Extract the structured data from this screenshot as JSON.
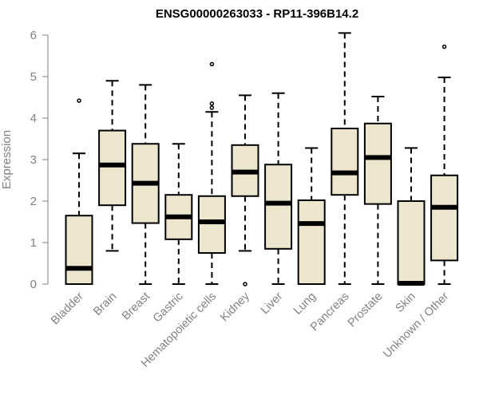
{
  "chart_data": {
    "type": "boxplot",
    "title": "ENSG00000263033 - RP11-396B14.2",
    "xlabel": "",
    "ylabel": "Expression",
    "ylim": [
      0,
      6
    ],
    "yticks": [
      "0",
      "1",
      "2",
      "3",
      "4",
      "5",
      "6"
    ],
    "grid": false,
    "box_fill": "#EDE6CE",
    "categories": [
      "Bladder",
      "Brain",
      "Breast",
      "Gastric",
      "Hematopoietic cells",
      "Kidney",
      "Liver",
      "Lung",
      "Pancreas",
      "Prostate",
      "Skin",
      "Unknown / Other"
    ],
    "boxes": [
      {
        "min": 0.0,
        "q1": 0.0,
        "median": 0.38,
        "q3": 1.65,
        "max": 3.15,
        "outliers": [
          4.42
        ]
      },
      {
        "min": 0.8,
        "q1": 1.9,
        "median": 2.87,
        "q3": 3.7,
        "max": 4.9,
        "outliers": []
      },
      {
        "min": 0.0,
        "q1": 1.47,
        "median": 2.43,
        "q3": 3.38,
        "max": 4.8,
        "outliers": []
      },
      {
        "min": 0.0,
        "q1": 1.08,
        "median": 1.62,
        "q3": 2.15,
        "max": 3.38,
        "outliers": []
      },
      {
        "min": 0.0,
        "q1": 0.75,
        "median": 1.5,
        "q3": 2.12,
        "max": 4.15,
        "outliers": [
          4.25,
          4.35,
          5.3
        ]
      },
      {
        "min": 0.8,
        "q1": 2.12,
        "median": 2.7,
        "q3": 3.35,
        "max": 4.55,
        "outliers": [
          0.0
        ]
      },
      {
        "min": 0.0,
        "q1": 0.85,
        "median": 1.95,
        "q3": 2.88,
        "max": 4.6,
        "outliers": []
      },
      {
        "min": 0.0,
        "q1": 0.0,
        "median": 1.46,
        "q3": 2.02,
        "max": 3.28,
        "outliers": []
      },
      {
        "min": 0.0,
        "q1": 2.15,
        "median": 2.68,
        "q3": 3.75,
        "max": 6.05,
        "outliers": []
      },
      {
        "min": 0.0,
        "q1": 1.93,
        "median": 3.05,
        "q3": 3.87,
        "max": 4.52,
        "outliers": []
      },
      {
        "min": 0.0,
        "q1": 0.0,
        "median": 0.02,
        "q3": 2.0,
        "max": 3.28,
        "outliers": []
      },
      {
        "min": 0.0,
        "q1": 0.57,
        "median": 1.85,
        "q3": 2.62,
        "max": 4.98,
        "outliers": [
          5.72
        ]
      }
    ]
  }
}
